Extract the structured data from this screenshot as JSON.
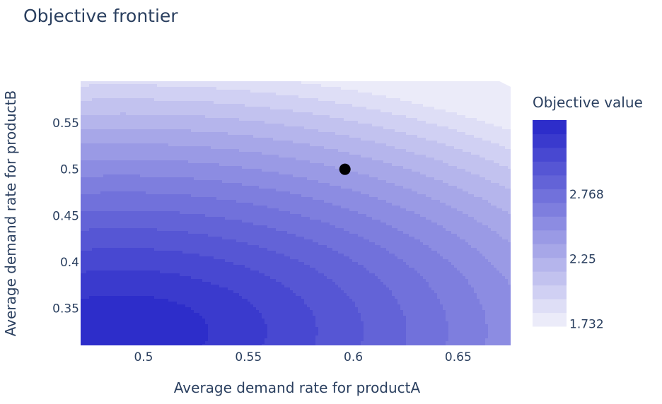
{
  "chart_data": {
    "type": "contour",
    "title": "Objective frontier",
    "xlabel": "Average demand rate for productA",
    "ylabel": "Average demand rate for productB",
    "xlim": [
      0.47,
      0.675
    ],
    "ylim": [
      0.31,
      0.595
    ],
    "x_ticks": [
      {
        "value": 0.5,
        "label": "0.5"
      },
      {
        "value": 0.55,
        "label": "0.55"
      },
      {
        "value": 0.6,
        "label": "0.6"
      },
      {
        "value": 0.65,
        "label": "0.65"
      }
    ],
    "y_ticks": [
      {
        "value": 0.35,
        "label": "0.35"
      },
      {
        "value": 0.4,
        "label": "0.4"
      },
      {
        "value": 0.45,
        "label": "0.45"
      },
      {
        "value": 0.5,
        "label": "0.5"
      },
      {
        "value": 0.55,
        "label": "0.55"
      }
    ],
    "surface_peak": {
      "x": 0.49,
      "y": 0.325
    },
    "colorbar": {
      "title": "Objective value",
      "range": [
        1.7,
        3.35
      ],
      "levels": 15,
      "color_low": "#f2f2fb",
      "color_high": "#2626c8",
      "ticks": [
        {
          "value": 1.732,
          "label": "1.732"
        },
        {
          "value": 2.25,
          "label": "2.25"
        },
        {
          "value": 2.768,
          "label": "2.768"
        }
      ]
    },
    "marker": {
      "x": 0.596,
      "y": 0.5,
      "color": "#000000"
    },
    "grid": false,
    "legend": "colorbar-right"
  }
}
